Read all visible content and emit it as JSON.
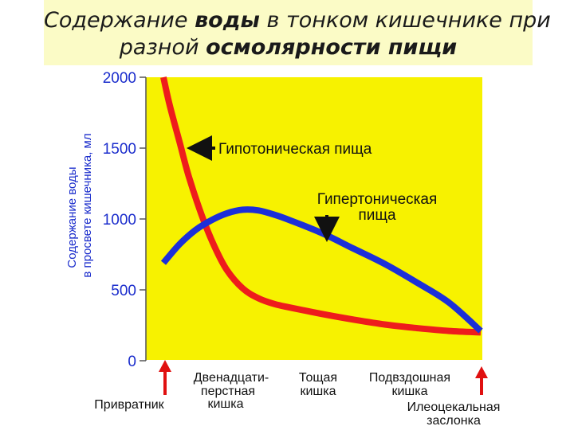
{
  "title": {
    "line1_pre": "Содержание ",
    "line1_bold": "воды",
    "line1_post": " в тонком кишечнике при",
    "line2_pre": "разной ",
    "line2_bold": "осмолярности пищи"
  },
  "colors": {
    "plot_bg": "#f7f200",
    "hypotonic": "#ee1c1c",
    "hypertonic": "#1c2fd9",
    "axis_text": "#1a2ccc",
    "marker_arrow": "#e01010"
  },
  "chart_data": {
    "type": "line",
    "ylabel_line1": "Содержание воды",
    "ylabel_line2": "в просвете кишечника, мл",
    "ylim": [
      0,
      2000
    ],
    "yticks": [
      "2000",
      "1500",
      "1000",
      "500",
      "0"
    ],
    "ytick_values": [
      2000,
      1500,
      1000,
      500,
      0
    ],
    "xlim": [
      0,
      1
    ],
    "grid": false,
    "series": [
      {
        "name": "Гипотоническая пища",
        "x": [
          0.0,
          0.02,
          0.05,
          0.08,
          0.12,
          0.16,
          0.2,
          0.25,
          0.3,
          0.35,
          0.4,
          0.5,
          0.6,
          0.7,
          0.8,
          0.9,
          1.0
        ],
        "y": [
          2000,
          1800,
          1550,
          1300,
          1030,
          810,
          640,
          510,
          440,
          400,
          375,
          330,
          290,
          255,
          230,
          210,
          200
        ]
      },
      {
        "name": "Гипертоническая пища",
        "x": [
          0.0,
          0.05,
          0.1,
          0.15,
          0.2,
          0.25,
          0.3,
          0.35,
          0.4,
          0.5,
          0.6,
          0.7,
          0.8,
          0.9,
          1.0
        ],
        "y": [
          690,
          820,
          920,
          990,
          1040,
          1065,
          1060,
          1030,
          990,
          900,
          790,
          680,
          550,
          410,
          210
        ]
      }
    ],
    "annotations": {
      "hypotonic": "Гипотоническая  пища",
      "hypertonic_line1": "Гипертоническая",
      "hypertonic_line2": "пища"
    },
    "segments": [
      {
        "lines": [
          "Двенадцати-",
          "перстная",
          "кишка"
        ]
      },
      {
        "lines": [
          "Тощая",
          "кишка"
        ]
      },
      {
        "lines": [
          "Подвздошная",
          "кишка"
        ]
      }
    ],
    "markers": {
      "start": "Привратник",
      "end_line1": "Илеоцекальная",
      "end_line2": "заслонка"
    }
  }
}
